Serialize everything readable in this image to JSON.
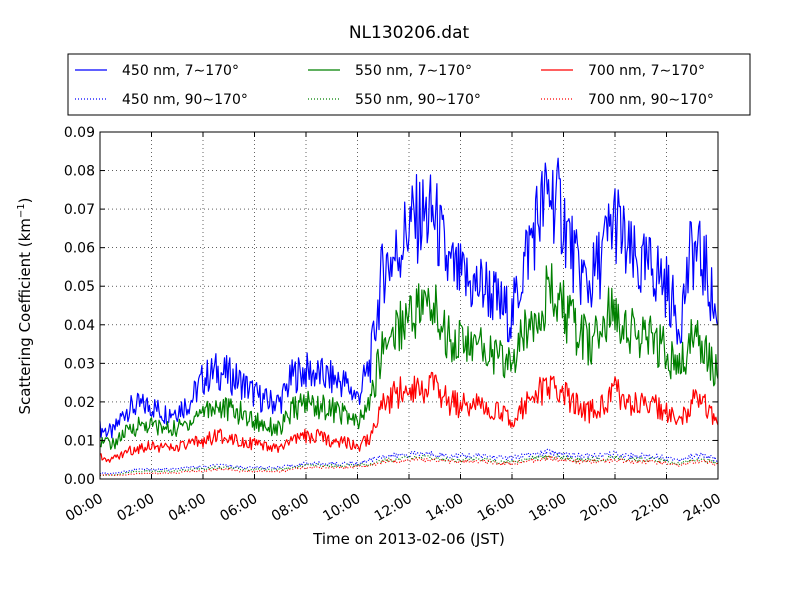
{
  "chart_data": {
    "type": "line",
    "title": "NL130206.dat",
    "xlabel": "Time on 2013-02-06 (JST)",
    "ylabel": "Scattering Coefficient (km",
    "ylabel_sup": "−1",
    "ylabel_end": ")",
    "xlim": [
      0,
      24
    ],
    "ylim": [
      0,
      0.09
    ],
    "grid": true,
    "legend_position": "top",
    "x_ticks": [
      0,
      2,
      4,
      6,
      8,
      10,
      12,
      14,
      16,
      18,
      20,
      22,
      24
    ],
    "x_tick_labels": [
      "00:00",
      "02:00",
      "04:00",
      "06:00",
      "08:00",
      "10:00",
      "12:00",
      "14:00",
      "16:00",
      "18:00",
      "20:00",
      "22:00",
      "24:00"
    ],
    "y_ticks": [
      0,
      0.01,
      0.02,
      0.03,
      0.04,
      0.05,
      0.06,
      0.07,
      0.08,
      0.09
    ],
    "y_tick_labels": [
      "0.00",
      "0.01",
      "0.02",
      "0.03",
      "0.04",
      "0.05",
      "0.06",
      "0.07",
      "0.08",
      "0.09"
    ],
    "x": [
      0,
      0.5,
      1,
      1.5,
      2,
      2.5,
      3,
      3.5,
      4,
      4.5,
      5,
      5.5,
      6,
      6.5,
      7,
      7.5,
      8,
      8.5,
      9,
      9.5,
      10,
      10.5,
      11,
      11.5,
      12,
      12.5,
      13,
      13.5,
      14,
      14.5,
      15,
      15.5,
      16,
      16.5,
      17,
      17.5,
      18,
      18.5,
      19,
      19.5,
      20,
      20.5,
      21,
      21.5,
      22,
      22.5,
      23,
      23.5,
      24
    ],
    "series": [
      {
        "name": "450 nm, 7∼170°",
        "color": "#0000ff",
        "style": "solid",
        "values": [
          0.013,
          0.012,
          0.018,
          0.019,
          0.019,
          0.017,
          0.018,
          0.02,
          0.026,
          0.028,
          0.027,
          0.025,
          0.022,
          0.02,
          0.02,
          0.027,
          0.028,
          0.027,
          0.026,
          0.025,
          0.021,
          0.03,
          0.055,
          0.058,
          0.066,
          0.068,
          0.068,
          0.055,
          0.052,
          0.05,
          0.05,
          0.045,
          0.042,
          0.057,
          0.068,
          0.075,
          0.068,
          0.055,
          0.05,
          0.058,
          0.068,
          0.058,
          0.054,
          0.055,
          0.05,
          0.04,
          0.06,
          0.055,
          0.04
        ]
      },
      {
        "name": "450 nm, 90∼170°",
        "color": "#0000ff",
        "style": "dotted",
        "values": [
          0.0015,
          0.0015,
          0.002,
          0.0025,
          0.0025,
          0.0025,
          0.0025,
          0.003,
          0.003,
          0.0035,
          0.0035,
          0.003,
          0.003,
          0.003,
          0.003,
          0.0035,
          0.004,
          0.004,
          0.004,
          0.004,
          0.004,
          0.005,
          0.006,
          0.006,
          0.0065,
          0.0065,
          0.0065,
          0.006,
          0.006,
          0.006,
          0.006,
          0.0055,
          0.0055,
          0.006,
          0.0065,
          0.007,
          0.0065,
          0.006,
          0.006,
          0.006,
          0.0065,
          0.006,
          0.006,
          0.006,
          0.0055,
          0.005,
          0.006,
          0.006,
          0.005
        ]
      },
      {
        "name": "550 nm, 7∼170°",
        "color": "#008000",
        "style": "solid",
        "values": [
          0.01,
          0.009,
          0.012,
          0.014,
          0.014,
          0.013,
          0.013,
          0.015,
          0.018,
          0.019,
          0.018,
          0.017,
          0.015,
          0.014,
          0.013,
          0.018,
          0.02,
          0.019,
          0.018,
          0.017,
          0.014,
          0.02,
          0.035,
          0.039,
          0.043,
          0.045,
          0.044,
          0.037,
          0.036,
          0.034,
          0.034,
          0.031,
          0.03,
          0.038,
          0.045,
          0.048,
          0.044,
          0.038,
          0.035,
          0.039,
          0.045,
          0.039,
          0.036,
          0.036,
          0.033,
          0.028,
          0.037,
          0.035,
          0.026
        ]
      },
      {
        "name": "550 nm, 90∼170°",
        "color": "#008000",
        "style": "dotted",
        "values": [
          0.001,
          0.001,
          0.0015,
          0.002,
          0.002,
          0.002,
          0.002,
          0.0025,
          0.0025,
          0.003,
          0.003,
          0.0025,
          0.0025,
          0.0025,
          0.0025,
          0.003,
          0.0035,
          0.0035,
          0.0035,
          0.0035,
          0.0035,
          0.004,
          0.005,
          0.005,
          0.0055,
          0.0055,
          0.0055,
          0.005,
          0.005,
          0.005,
          0.005,
          0.0045,
          0.0045,
          0.005,
          0.0055,
          0.006,
          0.0055,
          0.005,
          0.005,
          0.005,
          0.0055,
          0.005,
          0.005,
          0.005,
          0.0045,
          0.004,
          0.005,
          0.005,
          0.004
        ]
      },
      {
        "name": "700 nm, 7∼170°",
        "color": "#ff0000",
        "style": "solid",
        "values": [
          0.006,
          0.005,
          0.007,
          0.008,
          0.009,
          0.008,
          0.008,
          0.009,
          0.01,
          0.011,
          0.011,
          0.01,
          0.009,
          0.008,
          0.008,
          0.01,
          0.011,
          0.011,
          0.01,
          0.01,
          0.008,
          0.011,
          0.019,
          0.022,
          0.024,
          0.024,
          0.024,
          0.02,
          0.019,
          0.019,
          0.019,
          0.017,
          0.016,
          0.019,
          0.022,
          0.024,
          0.022,
          0.019,
          0.017,
          0.019,
          0.023,
          0.02,
          0.019,
          0.019,
          0.017,
          0.014,
          0.02,
          0.019,
          0.014
        ]
      },
      {
        "name": "700 nm, 90∼170°",
        "color": "#ff0000",
        "style": "dotted",
        "values": [
          0.001,
          0.001,
          0.001,
          0.0015,
          0.0015,
          0.0015,
          0.0015,
          0.002,
          0.002,
          0.0025,
          0.0025,
          0.002,
          0.002,
          0.002,
          0.002,
          0.0025,
          0.003,
          0.003,
          0.003,
          0.003,
          0.003,
          0.0035,
          0.0045,
          0.0045,
          0.005,
          0.005,
          0.005,
          0.0045,
          0.0045,
          0.0045,
          0.0045,
          0.004,
          0.004,
          0.0045,
          0.005,
          0.0055,
          0.005,
          0.0045,
          0.0045,
          0.0045,
          0.005,
          0.0045,
          0.0045,
          0.0045,
          0.004,
          0.0035,
          0.0045,
          0.0045,
          0.0035
        ]
      }
    ]
  }
}
